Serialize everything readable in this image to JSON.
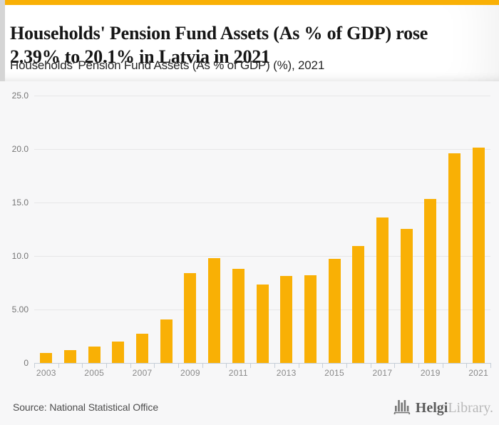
{
  "header": {
    "title": "Households' Pension Fund Assets (As % of GDP) rose 2.39% to 20.1% in Latvia in 2021",
    "title_line1": "Households' Pension Fund Assets (As % of GDP) rose",
    "title_line2": "2.39% to 20.1% in Latvia in 2021",
    "subtitle": "Households' Pension Fund Assets (As % of GDP) (%), 2021"
  },
  "footer": {
    "source": "Source: National Statistical Office",
    "logo_icon": "helgi-bars-icon",
    "logo_text_primary": "Helgi",
    "logo_text_secondary": "Library."
  },
  "colors": {
    "accent_gold": "#F9B005",
    "bar": "#F9B005",
    "gridline": "#E7E7E8",
    "axis": "#C6CFD8",
    "y_label_text": "#757575",
    "x_label_text": "#898989",
    "title_text": "#161616",
    "page_bg": "#F7F7F8",
    "header_bg": "#FFFFFF",
    "header_edge": "#D5D5D5"
  },
  "chart_data": {
    "type": "bar",
    "title": "Households' Pension Fund Assets (As % of GDP) (%), 2021",
    "series_name": "Households' Pension Fund Assets (As % of GDP)",
    "categories": [
      "2003",
      "2004",
      "2005",
      "2006",
      "2007",
      "2008",
      "2009",
      "2010",
      "2011",
      "2012",
      "2013",
      "2014",
      "2015",
      "2016",
      "2017",
      "2018",
      "2019",
      "2020",
      "2021"
    ],
    "values": [
      0.9,
      1.2,
      1.5,
      2.0,
      2.7,
      4.1,
      8.4,
      9.8,
      8.8,
      7.3,
      8.1,
      8.2,
      9.7,
      10.9,
      13.6,
      12.5,
      15.3,
      19.6,
      20.1
    ],
    "xlabel": "",
    "ylabel": "",
    "ylim": [
      0,
      25
    ],
    "y_ticks": [
      {
        "value": 25,
        "label": "25.0"
      },
      {
        "value": 20,
        "label": "20.0"
      },
      {
        "value": 15,
        "label": "15.0"
      },
      {
        "value": 10,
        "label": "10.0"
      },
      {
        "value": 5,
        "label": "5.00"
      },
      {
        "value": 0,
        "label": "0"
      }
    ],
    "x_tick_labels": [
      "2003",
      "2005",
      "2007",
      "2009",
      "2011",
      "2013",
      "2015",
      "2017",
      "2019",
      "2021"
    ],
    "grid": true,
    "legend": false,
    "bar_color": "#F9B005"
  }
}
